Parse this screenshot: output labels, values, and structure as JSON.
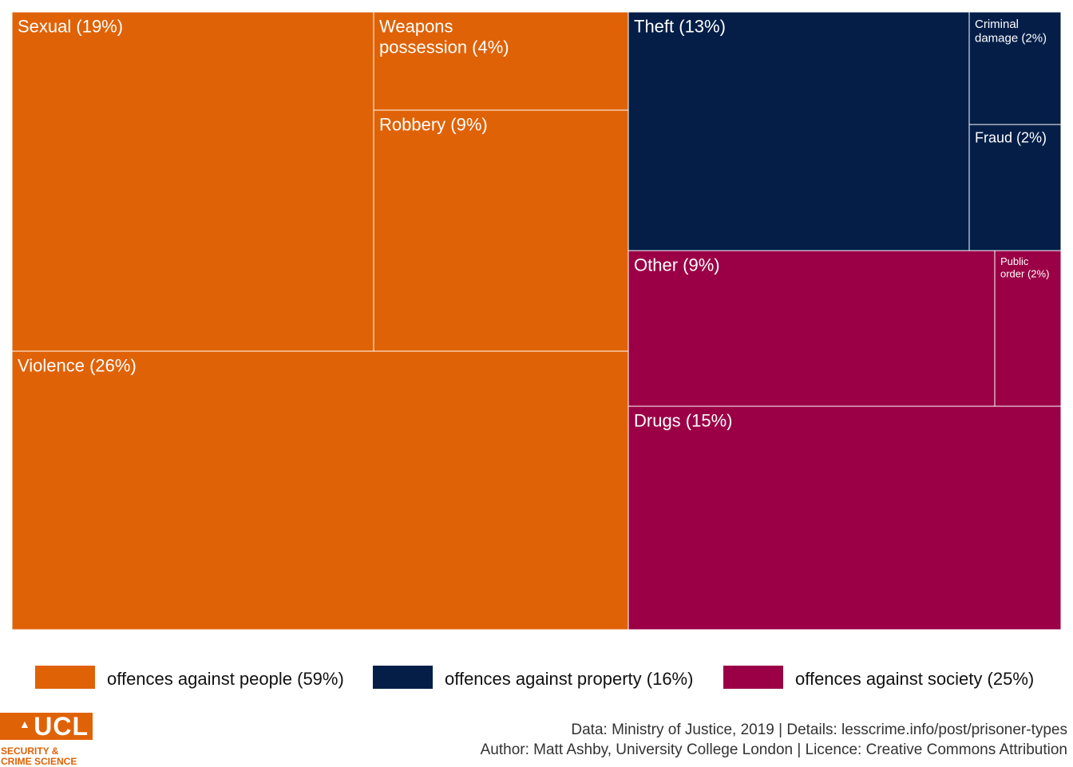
{
  "chart_data": {
    "type": "treemap",
    "total_label": "",
    "groups": [
      {
        "name": "offences against people (59%)",
        "value": 59,
        "color": "#e06206",
        "items": [
          {
            "label": "Sexual (19%)",
            "value": 19
          },
          {
            "label": "Weapons possession (4%)",
            "value": 4
          },
          {
            "label": "Robbery (9%)",
            "value": 9
          },
          {
            "label": "Violence (26%)",
            "value": 26
          }
        ]
      },
      {
        "name": "offences against property (16%)",
        "value": 16,
        "color": "#041e48",
        "items": [
          {
            "label": "Theft (13%)",
            "value": 13
          },
          {
            "label": "Criminal damage (2%)",
            "value": 2
          },
          {
            "label": "Fraud (2%)",
            "value": 2
          }
        ]
      },
      {
        "name": "offences against society (25%)",
        "value": 25,
        "color": "#9b0046",
        "items": [
          {
            "label": "Other (9%)",
            "value": 9
          },
          {
            "label": "Public order (2%)",
            "value": 2
          },
          {
            "label": "Drugs (15%)",
            "value": 15
          }
        ]
      }
    ]
  },
  "footer": {
    "line1": "Data: Ministry of Justice, 2019 |  Details: lesscrime.info/post/prisoner-types",
    "line2": "Author: Matt Ashby, University College London |  Licence: Creative Commons Attribution"
  },
  "logo": {
    "wordmark": "UCL",
    "mark": "▲",
    "line1": "SECURITY &",
    "line2": "CRIME SCIENCE"
  }
}
